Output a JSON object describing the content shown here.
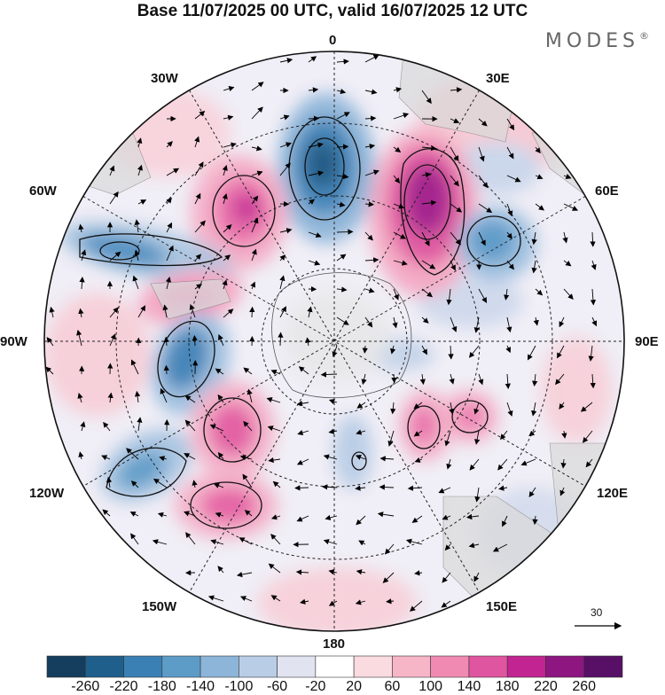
{
  "title": "Base 11/07/2025 00 UTC, valid 16/07/2025 12 UTC",
  "brand": "MODES",
  "brand_mark": "®",
  "longitudes": {
    "n0": "0",
    "n30e": "30E",
    "n60e": "60E",
    "n90e": "90E",
    "n120e": "120E",
    "n150e": "150E",
    "n180": "180",
    "n150w": "150W",
    "n120w": "120W",
    "n90w": "90W",
    "n60w": "60W",
    "n30w": "30W"
  },
  "reference_vector": "30",
  "colorbar": {
    "labels": [
      "-260",
      "-220",
      "-180",
      "-140",
      "-100",
      "-60",
      "-20",
      "20",
      "60",
      "100",
      "140",
      "180",
      "220",
      "260"
    ],
    "colors": [
      "#143d5e",
      "#1f5f8c",
      "#3a80b4",
      "#5e9cc8",
      "#8db5d9",
      "#b9cde6",
      "#e1e3f0",
      "#ffffff",
      "#f9dbe0",
      "#f6b6c8",
      "#f08ab3",
      "#e0559f",
      "#c22491",
      "#8e1680",
      "#571065"
    ]
  }
}
